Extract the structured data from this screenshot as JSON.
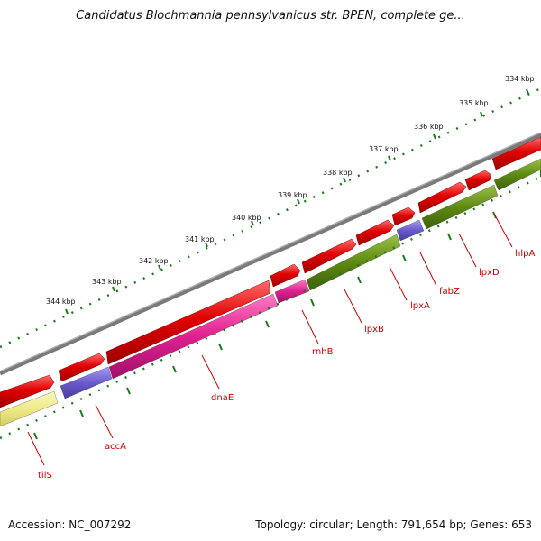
{
  "title": "Candidatus Blochmannia pennsylvanicus str. BPEN, complete ge...",
  "footer": {
    "accession": "Accession: NC_007292",
    "topology": "Topology: circular; Length: 791,654 bp; Genes: 653"
  },
  "scale_labels": [
    "334 kbp",
    "335 kbp",
    "336 kbp",
    "337 kbp",
    "338 kbp",
    "339 kbp",
    "340 kbp",
    "341 kbp",
    "342 kbp",
    "343 kbp",
    "344 kbp"
  ],
  "gene_labels": [
    "hlpA",
    "lpxD",
    "fabZ",
    "lpxA",
    "lpxB",
    "rnhB",
    "dnaE",
    "accA",
    "tilS"
  ],
  "colors": {
    "backbone": "#7a7a7a",
    "cds_arrow": "#e00000",
    "magenta": "#e0208f",
    "olive": "#5e8a10",
    "purple": "#6a5acd",
    "yellow": "#eeea88",
    "tick": "#1a7a1a",
    "label": "#d40000"
  }
}
